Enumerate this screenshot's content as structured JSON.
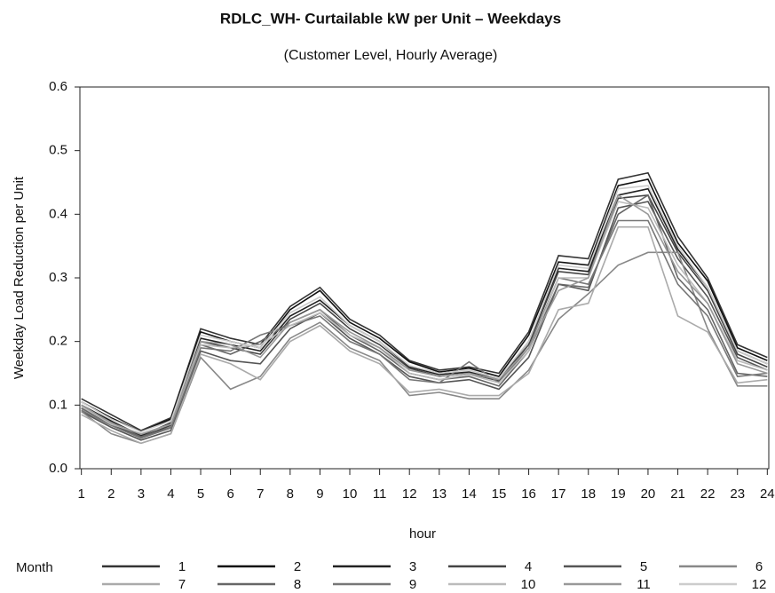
{
  "chart_data": {
    "type": "line",
    "title": "RDLC_WH- Curtailable kW per Unit – Weekdays",
    "subtitle": "(Customer Level, Hourly Average)",
    "x_label": "hour",
    "y_label": "Weekday Load Reduction per Unit",
    "legend_title": "Month",
    "x": [
      1,
      2,
      3,
      4,
      5,
      6,
      7,
      8,
      9,
      10,
      11,
      12,
      13,
      14,
      15,
      16,
      17,
      18,
      19,
      20,
      21,
      22,
      23,
      24
    ],
    "xlim": [
      0.95,
      24.05
    ],
    "xticks": [
      1,
      2,
      3,
      4,
      5,
      6,
      7,
      8,
      9,
      10,
      11,
      12,
      13,
      14,
      15,
      16,
      17,
      18,
      19,
      20,
      21,
      22,
      23,
      24
    ],
    "ylim": [
      0,
      0.6
    ],
    "yticks": [
      {
        "value": 0,
        "label": "0.0"
      },
      0.1,
      0.2,
      0.3,
      0.4,
      0.5,
      0.6
    ],
    "series": [
      {
        "name": "1",
        "color": "#333333",
        "values": [
          0.11,
          0.085,
          0.06,
          0.08,
          0.22,
          0.205,
          0.195,
          0.255,
          0.285,
          0.235,
          0.21,
          0.17,
          0.155,
          0.16,
          0.15,
          0.215,
          0.335,
          0.33,
          0.455,
          0.465,
          0.365,
          0.3,
          0.195,
          0.175
        ]
      },
      {
        "name": "2",
        "color": "#111111",
        "values": [
          0.105,
          0.08,
          0.058,
          0.078,
          0.215,
          0.2,
          0.19,
          0.25,
          0.28,
          0.23,
          0.205,
          0.168,
          0.152,
          0.158,
          0.145,
          0.21,
          0.325,
          0.32,
          0.445,
          0.455,
          0.355,
          0.295,
          0.19,
          0.17
        ]
      },
      {
        "name": "3",
        "color": "#222222",
        "values": [
          0.1,
          0.075,
          0.052,
          0.072,
          0.205,
          0.195,
          0.185,
          0.24,
          0.265,
          0.225,
          0.2,
          0.16,
          0.148,
          0.152,
          0.14,
          0.2,
          0.315,
          0.31,
          0.43,
          0.44,
          0.345,
          0.285,
          0.185,
          0.165
        ]
      },
      {
        "name": "4",
        "color": "#444444",
        "values": [
          0.095,
          0.07,
          0.05,
          0.068,
          0.2,
          0.19,
          0.18,
          0.235,
          0.26,
          0.22,
          0.195,
          0.158,
          0.145,
          0.15,
          0.138,
          0.195,
          0.31,
          0.305,
          0.425,
          0.43,
          0.34,
          0.28,
          0.18,
          0.16
        ]
      },
      {
        "name": "5",
        "color": "#555555",
        "values": [
          0.09,
          0.065,
          0.045,
          0.06,
          0.185,
          0.17,
          0.165,
          0.22,
          0.245,
          0.205,
          0.18,
          0.145,
          0.135,
          0.14,
          0.125,
          0.175,
          0.29,
          0.28,
          0.41,
          0.42,
          0.33,
          0.27,
          0.175,
          0.155
        ]
      },
      {
        "name": "6",
        "color": "#888888",
        "values": [
          0.09,
          0.055,
          0.04,
          0.055,
          0.175,
          0.125,
          0.145,
          0.205,
          0.23,
          0.19,
          0.17,
          0.115,
          0.12,
          0.11,
          0.11,
          0.155,
          0.235,
          0.275,
          0.32,
          0.34,
          0.34,
          0.22,
          0.13,
          0.13
        ]
      },
      {
        "name": "7",
        "color": "#aaaaaa",
        "values": [
          0.085,
          0.06,
          0.04,
          0.055,
          0.18,
          0.165,
          0.14,
          0.2,
          0.225,
          0.185,
          0.165,
          0.12,
          0.125,
          0.115,
          0.115,
          0.15,
          0.25,
          0.26,
          0.38,
          0.38,
          0.24,
          0.215,
          0.135,
          0.14
        ]
      },
      {
        "name": "8",
        "color": "#666666",
        "values": [
          0.095,
          0.072,
          0.05,
          0.065,
          0.195,
          0.18,
          0.2,
          0.23,
          0.25,
          0.21,
          0.185,
          0.15,
          0.14,
          0.145,
          0.13,
          0.185,
          0.29,
          0.285,
          0.4,
          0.43,
          0.3,
          0.25,
          0.15,
          0.145
        ]
      },
      {
        "name": "9",
        "color": "#777777",
        "values": [
          0.092,
          0.068,
          0.048,
          0.064,
          0.19,
          0.185,
          0.21,
          0.225,
          0.24,
          0.2,
          0.18,
          0.14,
          0.135,
          0.168,
          0.135,
          0.19,
          0.3,
          0.29,
          0.39,
          0.39,
          0.29,
          0.24,
          0.145,
          0.15
        ]
      },
      {
        "name": "10",
        "color": "#bbbbbb",
        "values": [
          0.098,
          0.07,
          0.055,
          0.07,
          0.195,
          0.19,
          0.195,
          0.225,
          0.245,
          0.21,
          0.19,
          0.15,
          0.14,
          0.148,
          0.135,
          0.185,
          0.3,
          0.3,
          0.42,
          0.41,
          0.32,
          0.26,
          0.17,
          0.155
        ]
      },
      {
        "name": "11",
        "color": "#999999",
        "values": [
          0.1,
          0.072,
          0.054,
          0.07,
          0.2,
          0.195,
          0.175,
          0.23,
          0.25,
          0.215,
          0.19,
          0.155,
          0.145,
          0.15,
          0.14,
          0.19,
          0.28,
          0.3,
          0.43,
          0.4,
          0.31,
          0.26,
          0.165,
          0.15
        ]
      },
      {
        "name": "12",
        "color": "#cccccc",
        "values": [
          0.105,
          0.078,
          0.058,
          0.075,
          0.21,
          0.2,
          0.19,
          0.245,
          0.27,
          0.225,
          0.2,
          0.162,
          0.15,
          0.155,
          0.142,
          0.2,
          0.32,
          0.315,
          0.44,
          0.445,
          0.35,
          0.285,
          0.185,
          0.165
        ]
      }
    ]
  }
}
